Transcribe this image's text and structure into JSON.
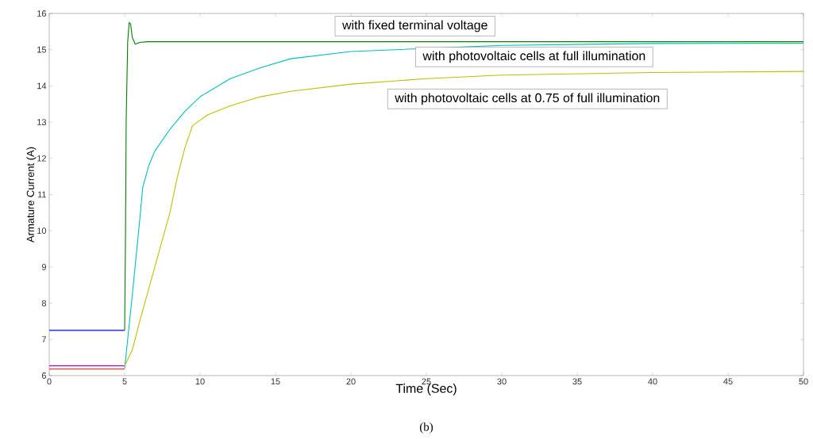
{
  "chart_data": {
    "type": "line",
    "xlabel": "Time (Sec)",
    "ylabel": "Armature Current (A)",
    "xlim": [
      0,
      50
    ],
    "ylim": [
      6,
      16
    ],
    "xticks": [
      0,
      5,
      10,
      15,
      20,
      25,
      30,
      35,
      40,
      45,
      50
    ],
    "yticks": [
      6,
      7,
      8,
      9,
      10,
      11,
      12,
      13,
      14,
      15,
      16
    ],
    "grid": false,
    "marker": "none",
    "line_style": "solid",
    "series": [
      {
        "color": "#0000ff",
        "x": [
          0,
          5
        ],
        "values": [
          7.25,
          7.25
        ]
      },
      {
        "color": "#ff0000",
        "x": [
          0,
          5
        ],
        "values": [
          6.18,
          6.18
        ]
      },
      {
        "color": "#bf00bf",
        "x": [
          0,
          5
        ],
        "values": [
          6.27,
          6.27
        ]
      },
      {
        "color": "#007f00",
        "x": [
          5,
          5.05,
          5.1,
          5.2,
          5.3,
          5.4,
          5.5,
          5.7,
          6,
          6.5,
          7,
          50
        ],
        "values": [
          7.25,
          9.5,
          13,
          15.2,
          15.75,
          15.7,
          15.35,
          15.15,
          15.2,
          15.22,
          15.22,
          15.22
        ]
      },
      {
        "color": "#00bfbf",
        "x": [
          5,
          5.5,
          6,
          6.2,
          6.6,
          7,
          8,
          9,
          10,
          12,
          14,
          16,
          20,
          30,
          40,
          50
        ],
        "values": [
          6.2,
          8.2,
          10.3,
          11.2,
          11.8,
          12.2,
          12.8,
          13.3,
          13.7,
          14.2,
          14.5,
          14.75,
          14.95,
          15.12,
          15.17,
          15.18
        ]
      },
      {
        "color": "#bfbf00",
        "x": [
          5,
          5.5,
          6,
          7,
          8,
          8.5,
          9,
          9.5,
          10.5,
          12,
          14,
          16,
          20,
          25,
          30,
          40,
          50
        ],
        "values": [
          6.27,
          6.7,
          7.5,
          9.0,
          10.5,
          11.5,
          12.3,
          12.9,
          13.2,
          13.45,
          13.7,
          13.85,
          14.05,
          14.2,
          14.3,
          14.37,
          14.4
        ]
      }
    ],
    "annotations": [
      "with fixed terminal voltage",
      "with photovoltaic cells at full illumination",
      "with photovoltaic cells at 0.75 of full illumination",
      "(b)"
    ]
  }
}
